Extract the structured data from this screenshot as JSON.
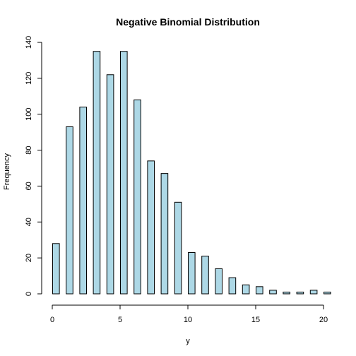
{
  "chart_data": {
    "type": "bar",
    "title": "Negative Binomial Distribution",
    "xlabel": "y",
    "ylabel": "Frequency",
    "x": [
      0,
      1,
      2,
      3,
      4,
      5,
      6,
      7,
      8,
      9,
      10,
      11,
      12,
      13,
      14,
      15,
      16,
      17,
      18,
      19,
      20
    ],
    "values": [
      28,
      93,
      104,
      135,
      122,
      135,
      108,
      74,
      67,
      51,
      23,
      21,
      14,
      9,
      5,
      4,
      2,
      1,
      1,
      2,
      1
    ],
    "xlim": [
      0,
      20
    ],
    "ylim": [
      0,
      140
    ],
    "xticks": [
      0,
      5,
      10,
      15,
      20
    ],
    "yticks": [
      0,
      20,
      40,
      60,
      80,
      100,
      120,
      140
    ],
    "grid": false,
    "bar_fill": "#add8e6",
    "bar_stroke": "#000000"
  }
}
